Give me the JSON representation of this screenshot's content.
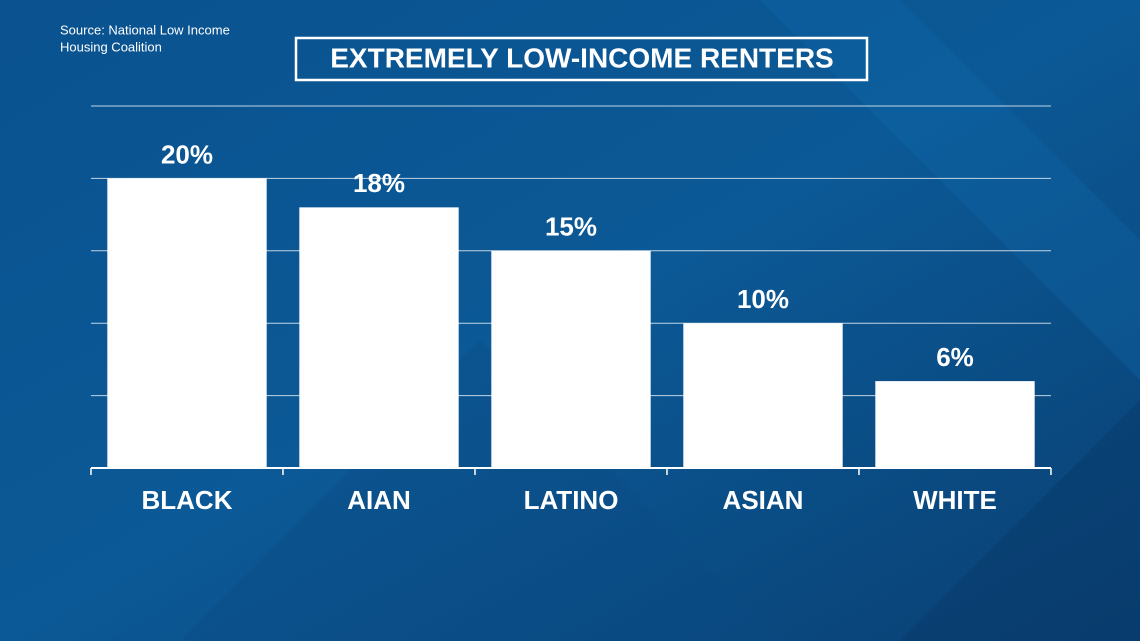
{
  "chart_data": {
    "type": "bar",
    "title": "EXTREMELY LOW-INCOME RENTERS",
    "source": [
      "Source: National Low Income",
      "Housing Coalition"
    ],
    "categories": [
      "BLACK",
      "AIAN",
      "LATINO",
      "ASIAN",
      "WHITE"
    ],
    "values": [
      20,
      18,
      15,
      10,
      6
    ],
    "value_labels": [
      "20%",
      "18%",
      "15%",
      "10%",
      "6%"
    ],
    "color": "#ffffff",
    "ylim": [
      0,
      25
    ],
    "yticks": [
      0,
      5,
      10,
      15,
      20,
      25
    ],
    "grid": true
  }
}
